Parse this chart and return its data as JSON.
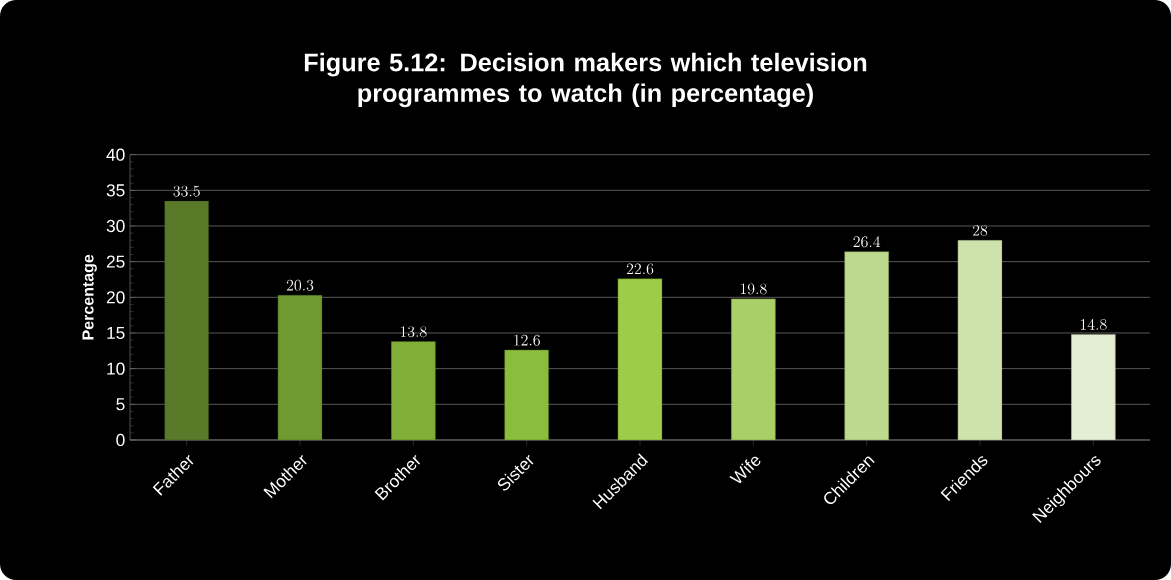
{
  "chart_data": {
    "type": "bar",
    "title": "Figure 5.12: Decision makers which television programmes to watch (in percentage)",
    "ylabel": "Percentage",
    "categories": [
      "Father",
      "Mother",
      "Brother",
      "Sister",
      "Husband",
      "Wife",
      "Children",
      "Friends",
      "Neighbours"
    ],
    "values": [
      33.5,
      20.3,
      13.8,
      12.6,
      22.6,
      19.8,
      26.4,
      28,
      14.8
    ],
    "colors": [
      "#5a7a2a",
      "#6f9a30",
      "#80ae36",
      "#8cbc3c",
      "#9ccc48",
      "#a9d066",
      "#bcd98e",
      "#cde3ab",
      "#e3eed2"
    ],
    "ylim": [
      0,
      40
    ],
    "yticks": [
      0,
      5,
      10,
      15,
      20,
      25,
      30,
      35,
      40
    ],
    "grid": "y",
    "data_labels": true
  }
}
